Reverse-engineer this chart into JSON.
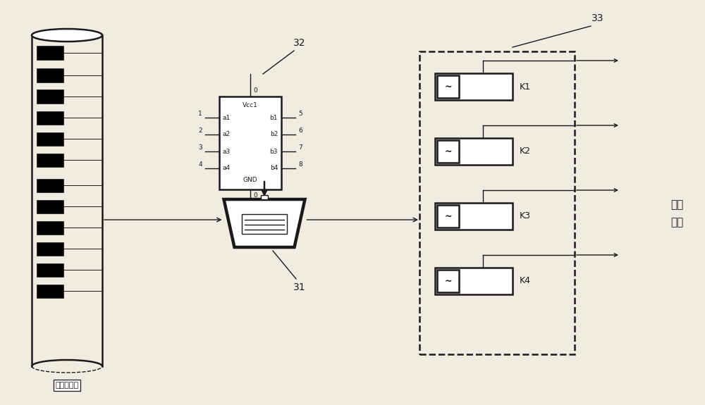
{
  "bg_color": "#f0ece0",
  "line_color": "#1a1a1a",
  "sensor_label": "传感器数据",
  "actuator_label": "执行\n机构",
  "label_31": "31",
  "label_32": "32",
  "label_33": "33",
  "relay_labels": [
    "K1",
    "K2",
    "K3",
    "K4"
  ],
  "ic_pins_left": [
    "a1",
    "a2",
    "a3",
    "a4"
  ],
  "ic_pins_right": [
    "b1",
    "b2",
    "b3",
    "b4"
  ],
  "ic_left_numbers": [
    "1",
    "2",
    "3",
    "4"
  ],
  "ic_right_numbers": [
    "5",
    "6",
    "7",
    "8"
  ],
  "ic_top_label": "Vcc1",
  "ic_bottom_label": "GND",
  "figw": 10.0,
  "figh": 5.75,
  "dpi": 100
}
